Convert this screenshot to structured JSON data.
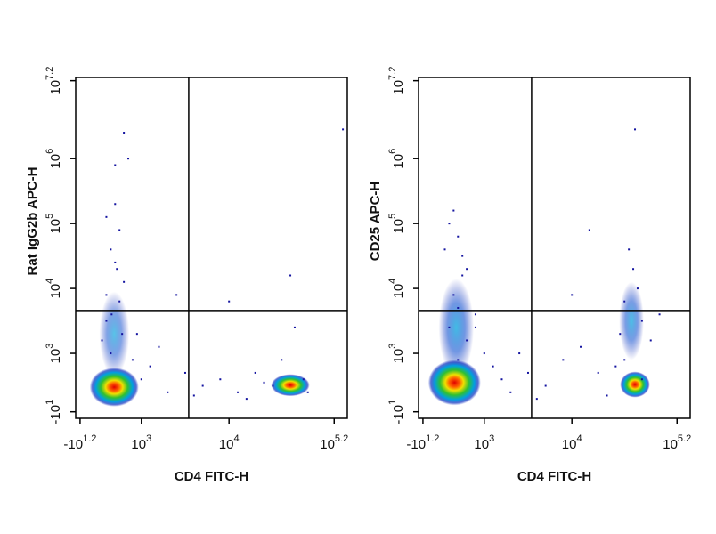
{
  "chart_data": [
    {
      "type": "density",
      "xlabel": "CD4 FITC-H",
      "ylabel": "Rat IgG2b APC-H",
      "xlim": [
        2.25,
        5.35
      ],
      "ylim": [
        2.0,
        7.25
      ],
      "xticks": [
        {
          "value": 2.3,
          "label": "-10",
          "exp": "1.2"
        },
        {
          "value": 3,
          "label": "10",
          "exp": "3"
        },
        {
          "value": 4,
          "label": "10",
          "exp": "4"
        },
        {
          "value": 5.2,
          "label": "10",
          "exp": "5.2"
        }
      ],
      "yticks": [
        {
          "value": 2.1,
          "label": "-10",
          "exp": "1"
        },
        {
          "value": 3,
          "label": "10",
          "exp": "3"
        },
        {
          "value": 4,
          "label": "10",
          "exp": "4"
        },
        {
          "value": 5,
          "label": "10",
          "exp": "5"
        },
        {
          "value": 6,
          "label": "10",
          "exp": "6"
        },
        {
          "value": 7.2,
          "label": "10",
          "exp": "7.2"
        }
      ],
      "gates": {
        "x": 3.54,
        "y": 3.66
      },
      "color": "#1414a0",
      "populations": [
        {
          "x": 2.69,
          "y": 3.3,
          "sx": 0.17,
          "sy": 0.65,
          "density": 0.35
        },
        {
          "x": 2.69,
          "y": 2.48,
          "sx": 0.28,
          "sy": 0.3,
          "density": 1
        },
        {
          "x": 4.7,
          "y": 2.51,
          "sx": 0.22,
          "sy": 0.17,
          "density": 0.9
        }
      ],
      "points": {
        "x": [
          2.55,
          2.6,
          2.75,
          2.8,
          2.7,
          2.65,
          2.9,
          3.0,
          3.1,
          3.3,
          3.5,
          3.7,
          3.9,
          4.1,
          4.3,
          4.5,
          4.6,
          4.85,
          4.9,
          2.6,
          2.7,
          2.8,
          2.65,
          2.75,
          2.85,
          2.7,
          3.4,
          4.0,
          4.2,
          4.75,
          4.7,
          3.2,
          2.95,
          2.6,
          2.72,
          3.6,
          4.4,
          5.3,
          2.66,
          2.78
        ],
        "y": [
          3.2,
          3.5,
          3.8,
          4.1,
          4.4,
          3.0,
          2.9,
          2.6,
          2.8,
          2.4,
          2.7,
          2.5,
          2.6,
          2.4,
          2.7,
          2.5,
          2.9,
          2.6,
          2.4,
          5.1,
          5.9,
          6.4,
          4.6,
          4.9,
          6.0,
          5.3,
          3.9,
          3.8,
          2.3,
          3.4,
          4.2,
          3.1,
          3.3,
          3.9,
          4.3,
          2.35,
          2.55,
          6.45,
          3.6,
          3.3
        ]
      }
    },
    {
      "type": "density",
      "xlabel": "CD4 FITC-H",
      "ylabel": "CD25 APC-H",
      "xlim": [
        2.25,
        5.35
      ],
      "ylim": [
        2.0,
        7.25
      ],
      "xticks": [
        {
          "value": 2.3,
          "label": "-10",
          "exp": "1.2"
        },
        {
          "value": 3,
          "label": "10",
          "exp": "3"
        },
        {
          "value": 4,
          "label": "10",
          "exp": "4"
        },
        {
          "value": 5.2,
          "label": "10",
          "exp": "5.2"
        }
      ],
      "yticks": [
        {
          "value": 2.1,
          "label": "-10",
          "exp": "1"
        },
        {
          "value": 3,
          "label": "10",
          "exp": "3"
        },
        {
          "value": 4,
          "label": "10",
          "exp": "4"
        },
        {
          "value": 5,
          "label": "10",
          "exp": "5"
        },
        {
          "value": 6,
          "label": "10",
          "exp": "6"
        },
        {
          "value": 7.2,
          "label": "10",
          "exp": "7.2"
        }
      ],
      "gates": {
        "x": 3.54,
        "y": 3.66
      },
      "color": "#1414a0",
      "populations": [
        {
          "x": 2.68,
          "y": 3.4,
          "sx": 0.2,
          "sy": 0.75,
          "density": 0.45
        },
        {
          "x": 2.66,
          "y": 2.55,
          "sx": 0.3,
          "sy": 0.35,
          "density": 1
        },
        {
          "x": 4.68,
          "y": 3.5,
          "sx": 0.14,
          "sy": 0.6,
          "density": 0.4
        },
        {
          "x": 4.72,
          "y": 2.52,
          "sx": 0.17,
          "sy": 0.2,
          "density": 0.85
        }
      ],
      "points": {
        "x": [
          2.55,
          2.6,
          2.7,
          2.8,
          2.65,
          2.75,
          2.9,
          3.0,
          3.1,
          3.3,
          3.5,
          3.7,
          3.9,
          4.1,
          4.3,
          4.5,
          4.6,
          4.8,
          4.9,
          2.6,
          2.7,
          2.8,
          2.65,
          2.75,
          4.6,
          4.7,
          4.75,
          4.65,
          4.8,
          4.55,
          3.4,
          4.0,
          4.2,
          5.0,
          4.72,
          3.2,
          2.9,
          3.6,
          4.4,
          2.7
        ],
        "y": [
          4.6,
          5.0,
          4.8,
          4.3,
          3.9,
          4.2,
          3.6,
          3.0,
          2.8,
          2.4,
          2.7,
          2.5,
          2.9,
          3.1,
          2.7,
          2.8,
          2.9,
          2.6,
          3.2,
          3.4,
          3.7,
          3.2,
          5.2,
          4.5,
          3.8,
          4.3,
          4.0,
          4.6,
          3.5,
          3.3,
          3.0,
          3.9,
          4.9,
          3.6,
          6.45,
          2.6,
          3.4,
          2.3,
          2.35,
          2.9
        ]
      }
    }
  ]
}
